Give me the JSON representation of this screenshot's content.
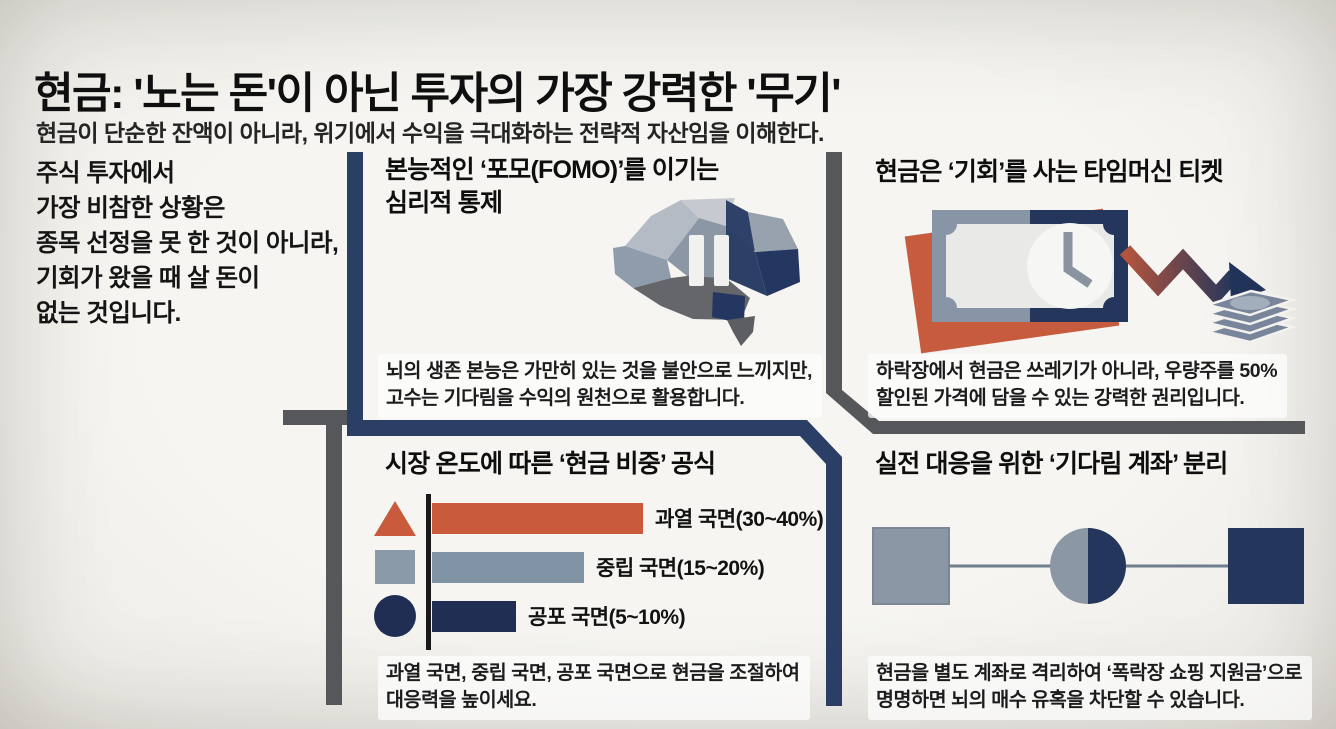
{
  "header": {
    "title": "현금: '노는 돈'이 아닌 투자의 가장 강력한 '무기'",
    "subtitle": "현금이 단순한 잔액이 아니라, 위기에서 수익을 극대화하는 전략적 자산임을 이해한다."
  },
  "intro": {
    "line1": "주식 투자에서",
    "line2": "가장 비참한 상황은",
    "line3": "종목 선정을 못 한 것이 아니라,",
    "line4": "기회가 왔을 때 살 돈이",
    "line5": "없는 것입니다."
  },
  "sections": {
    "psychology": {
      "title_line1": "본능적인 ‘포모(FOMO)’를 이기는",
      "title_line2": "심리적 통제",
      "desc_line1": "뇌의 생존 본능은 가만히 있는 것을 불안으로 느끼지만,",
      "desc_line2": "고수는 기다림을 수익의 원천으로 활용합니다.",
      "icon": "brain-pause-icon"
    },
    "ticket": {
      "title": "현금은 ‘기회’를 사는 타임머신 티켓",
      "desc_line1": "하락장에서 현금은 쓰레기가 아니라, 우량주를 50%",
      "desc_line2": "할인된 가격에 담을 수 있는 강력한 권리입니다.",
      "icon": "banknote-clock-crash-arrow-icon"
    },
    "formula": {
      "title": "시장 온도에 따른 ‘현금 비중’ 공식",
      "desc_line1": "과열 국면, 중립 국면, 공포 국면으로 현금을 조절하여",
      "desc_line2": "대응력을 높이세요.",
      "icon": "market-temperature-bar-chart"
    },
    "account": {
      "title": "실전 대응을 위한 ‘기다림 계좌’ 분리",
      "desc_line1": "현금을 별도 계좌로 격리하여 ‘폭락장 쇼핑 지원금’으로",
      "desc_line2": "명명하면 뇌의 매수 유혹을 차단할 수 있습니다.",
      "icon": "linked-accounts-icon"
    }
  },
  "chart_data": {
    "type": "bar",
    "orientation": "horizontal",
    "title": "시장 온도에 따른 ‘현금 비중’ 공식",
    "categories": [
      "과열 국면",
      "중립 국면",
      "공포 국면"
    ],
    "labels": [
      "과열 국면(30~40%)",
      "중립 국면(15~20%)",
      "공포 국면(5~10%)"
    ],
    "cash_ratio_ranges_pct": [
      [
        30,
        40
      ],
      [
        15,
        20
      ],
      [
        5,
        10
      ]
    ],
    "bar_rel_lengths": [
      1.0,
      0.72,
      0.4
    ],
    "bar_colors": [
      "#c95b3c",
      "#8094a5",
      "#1f2e52"
    ],
    "markers": [
      "triangle",
      "square",
      "circle"
    ],
    "marker_colors": [
      "#c95b3c",
      "#8a9aa8",
      "#1f2e52"
    ],
    "axis_note": "single black vertical baseline at left, no gridlines, no tick labels",
    "legend_position": "markers left of baseline, value labels right of bars"
  },
  "colors": {
    "background": "#f4f2ee",
    "text": "#141414",
    "navy": "#24365c",
    "navy_divider": "#2b3e66",
    "gray_divider": "#56575a",
    "gray_blue": "#8094a5",
    "orange": "#c95b3c"
  }
}
